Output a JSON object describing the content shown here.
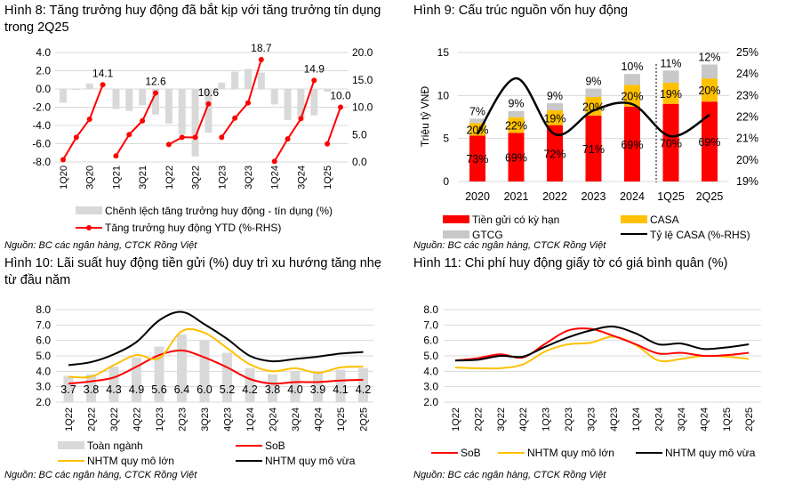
{
  "titles": {
    "fig8": "Hình 8: Tăng trưởng huy động đã bắt kịp với tăng trưởng tín dụng trong 2Q25",
    "fig9": "Hình 9: Cấu trúc nguồn vốn huy động",
    "fig10": "Hình 10: Lãi suất huy động tiền gửi (%) duy trì xu hướng tăng nhẹ từ đầu năm",
    "fig11": "Hình 11: Chi phí huy động giấy tờ có giá bình quân (%)"
  },
  "source": "Nguồn: BC các ngân hàng, CTCK Rồng Việt",
  "colors": {
    "red": "#ff0000",
    "yellow": "#ffc000",
    "grey": "#d9d9d9",
    "black": "#000000"
  },
  "chart_data": [
    {
      "type": "bar+line",
      "categories": [
        "1Q20",
        "2Q20",
        "3Q20",
        "4Q20",
        "1Q21",
        "2Q21",
        "3Q21",
        "4Q21",
        "1Q22",
        "2Q22",
        "3Q22",
        "4Q22",
        "1Q23",
        "2Q23",
        "3Q23",
        "4Q23",
        "1Q24",
        "2Q24",
        "3Q24",
        "4Q24",
        "1Q25",
        "2Q25"
      ],
      "tick_labels": [
        "1Q20",
        "3Q20",
        "1Q21",
        "3Q21",
        "1Q22",
        "3Q22",
        "1Q23",
        "3Q23",
        "1Q24",
        "3Q24",
        "1Q25"
      ],
      "ylim": [
        -8,
        4
      ],
      "yticks": [
        "4.0",
        "2.0",
        "0.0",
        "-2.0",
        "-4.0",
        "-6.0",
        "-8.0"
      ],
      "y2lim": [
        0,
        20
      ],
      "y2ticks": [
        "20.0",
        "15.0",
        "10.0",
        "5.0",
        "0.0"
      ],
      "series": [
        {
          "name": "Chênh lệch tăng trưởng huy động - tín dụng (%)",
          "type": "bar",
          "axis": "left",
          "values": [
            -1.5,
            -0.1,
            0.6,
            0,
            -2.2,
            -2.4,
            -1.8,
            -2.8,
            -3.8,
            -5.0,
            -7.4,
            -4.8,
            0.7,
            1.9,
            2.2,
            1.8,
            -1.7,
            -3.4,
            -3.2,
            -2.9,
            -0.3,
            0
          ]
        },
        {
          "name": "Tăng trưởng huy động YTD (%-RHS)",
          "type": "line",
          "axis": "right",
          "values": [
            0.4,
            4.5,
            7.8,
            14.1,
            1.1,
            5.0,
            7.5,
            12.6,
            3.2,
            4.5,
            4.5,
            10.6,
            4.5,
            8.0,
            10.8,
            18.7,
            0.1,
            4.2,
            7.9,
            14.9,
            3.3,
            10.0
          ]
        }
      ],
      "data_labels": [
        "14.1",
        "12.6",
        "10.6",
        "18.7",
        "14.9",
        "10.0"
      ]
    },
    {
      "type": "stacked-bar+line",
      "categories": [
        "2020",
        "2021",
        "2022",
        "2023",
        "2024",
        "1Q25",
        "2Q25"
      ],
      "ylabel": "Triệu tỷ VNĐ",
      "ylim": [
        0,
        15
      ],
      "yticks": [
        "15",
        "10",
        "5",
        "0"
      ],
      "y2lim": [
        19,
        25
      ],
      "y2ticks": [
        "25%",
        "24%",
        "23%",
        "22%",
        "21%",
        "20%",
        "19%"
      ],
      "totals": [
        7.3,
        8.2,
        9.1,
        10.8,
        12.5,
        12.9,
        13.6
      ],
      "series": [
        {
          "name": "Tiền gửi có kỳ hạn",
          "share_labels": [
            "73%",
            "69%",
            "72%",
            "71%",
            "69%",
            "70%",
            "69%"
          ]
        },
        {
          "name": "CASA",
          "share_labels": [
            "20%",
            "22%",
            "19%",
            "20%",
            "20%",
            "19%",
            "20%"
          ]
        },
        {
          "name": "GTCG",
          "share_labels": [
            "7%",
            "9%",
            "9%",
            "9%",
            "10%",
            "11%",
            "12%"
          ]
        },
        {
          "name": "Tỷ lệ CASA (%-RHS)",
          "type": "line",
          "values": [
            21.2,
            23.8,
            21.2,
            22.3,
            22.6,
            21.1,
            22.1
          ]
        }
      ]
    },
    {
      "type": "bar+line",
      "categories": [
        "1Q22",
        "2Q22",
        "3Q22",
        "4Q22",
        "1Q23",
        "2Q23",
        "3Q23",
        "4Q23",
        "1Q24",
        "2Q24",
        "3Q24",
        "4Q24",
        "1Q25",
        "2Q25"
      ],
      "ylim": [
        2,
        8
      ],
      "yticks": [
        "8.0",
        "7.0",
        "6.0",
        "5.0",
        "4.0",
        "3.0",
        "2.0"
      ],
      "series": [
        {
          "name": "Toàn ngành",
          "type": "bar",
          "values": [
            3.7,
            3.8,
            4.3,
            4.9,
            5.6,
            6.4,
            6.0,
            5.2,
            4.2,
            3.8,
            4.0,
            3.9,
            4.1,
            4.2
          ],
          "labels": [
            "3.7",
            "3.8",
            "4.3",
            "4.9",
            "5.6",
            "6.4",
            "6.0",
            "5.2",
            "4.2",
            "3.8",
            "4.0",
            "3.9",
            "4.1",
            "4.2"
          ]
        },
        {
          "name": "SoB",
          "type": "line",
          "values": [
            3.2,
            3.35,
            3.6,
            4.3,
            5.05,
            5.35,
            4.9,
            4.25,
            3.5,
            3.2,
            3.3,
            3.3,
            3.4,
            3.45
          ]
        },
        {
          "name": "NHTM quy mô lớn",
          "type": "line",
          "values": [
            3.65,
            3.65,
            4.4,
            5.05,
            4.85,
            6.6,
            6.5,
            5.5,
            4.45,
            4.0,
            4.2,
            3.9,
            4.25,
            4.3
          ]
        },
        {
          "name": "NHTM quy mô vừa",
          "type": "line",
          "values": [
            4.4,
            4.6,
            5.1,
            5.9,
            7.3,
            7.85,
            7.05,
            6.1,
            5.0,
            4.65,
            4.8,
            4.95,
            5.15,
            5.25
          ]
        }
      ]
    },
    {
      "type": "line",
      "categories": [
        "1Q22",
        "2Q22",
        "3Q22",
        "4Q22",
        "1Q23",
        "2Q23",
        "3Q23",
        "4Q23",
        "1Q24",
        "2Q24",
        "3Q24",
        "4Q24",
        "1Q25",
        "2Q25"
      ],
      "ylim": [
        2,
        8
      ],
      "yticks": [
        "8.0",
        "7.0",
        "6.0",
        "5.0",
        "4.0",
        "3.0",
        "2.0"
      ],
      "series": [
        {
          "name": "SoB",
          "values": [
            4.7,
            4.85,
            5.1,
            4.9,
            5.8,
            6.65,
            6.75,
            6.3,
            5.75,
            5.15,
            5.2,
            5.0,
            5.05,
            5.2
          ]
        },
        {
          "name": "NHTM quy mô lớn",
          "values": [
            4.25,
            4.2,
            4.2,
            4.45,
            5.3,
            5.75,
            5.85,
            6.25,
            5.7,
            4.7,
            4.8,
            5.0,
            4.95,
            4.8
          ]
        },
        {
          "name": "NHTM quy mô vừa",
          "values": [
            4.7,
            4.75,
            5.0,
            4.95,
            5.6,
            6.2,
            6.65,
            6.9,
            6.45,
            5.75,
            5.8,
            5.45,
            5.55,
            5.75
          ]
        }
      ]
    }
  ]
}
